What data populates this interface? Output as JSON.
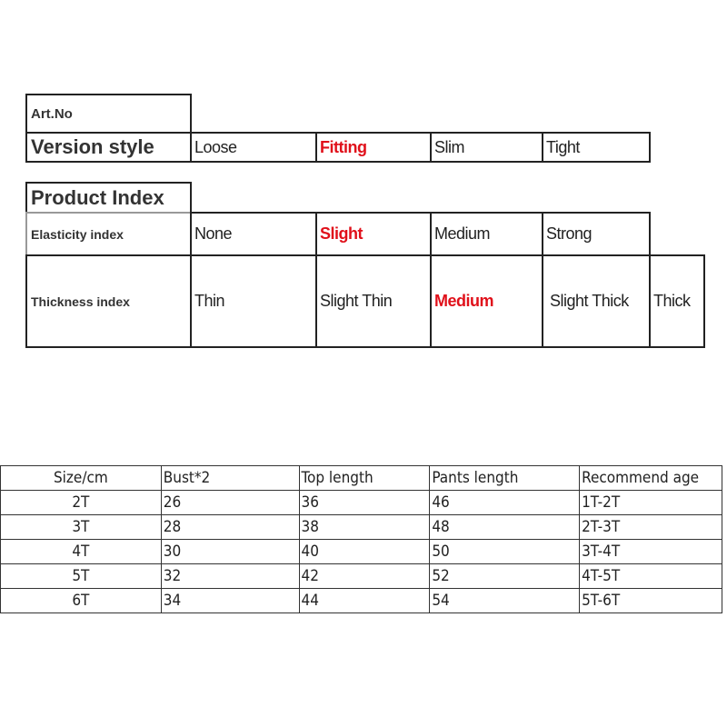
{
  "spec": {
    "art_no_label": "Art.No",
    "version_style": {
      "label": "Version style",
      "options": [
        "Loose",
        "Fitting",
        "Slim",
        "Tight"
      ],
      "selected": "Fitting"
    },
    "product_index_label": "Product Index",
    "elasticity": {
      "label": "Elasticity index",
      "options": [
        "None",
        "Slight",
        "Medium",
        "Strong"
      ],
      "selected": "Slight"
    },
    "thickness": {
      "label": "Thickness index",
      "options": [
        "Thin",
        "Slight Thin",
        "Medium",
        "Slight Thick",
        "Thick"
      ],
      "selected": "Medium"
    },
    "highlight_color": "#e0101a"
  },
  "size_table": {
    "headers": [
      "Size/cm",
      "Bust*2",
      "Top length",
      "Pants length",
      "Recommend age"
    ],
    "rows": [
      [
        "2T",
        "26",
        "36",
        "46",
        "1T-2T"
      ],
      [
        "3T",
        "28",
        "38",
        "48",
        "2T-3T"
      ],
      [
        "4T",
        "30",
        "40",
        "50",
        "3T-4T"
      ],
      [
        "5T",
        "32",
        "42",
        "52",
        "4T-5T"
      ],
      [
        "6T",
        "34",
        "44",
        "54",
        "5T-6T"
      ]
    ]
  }
}
